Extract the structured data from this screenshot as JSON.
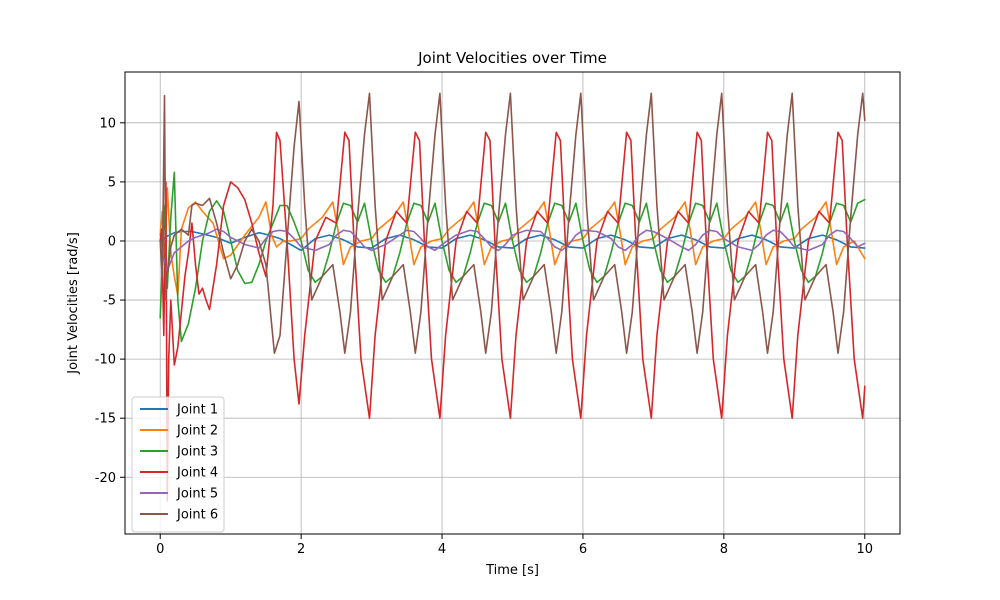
{
  "chart_data": {
    "type": "line",
    "title": "Joint Velocities over Time",
    "xlabel": "Time [s]",
    "ylabel": "Joint Velocities [rad/s]",
    "xlim": [
      -0.5,
      10.5
    ],
    "ylim": [
      -24.8,
      14.3
    ],
    "xticks": [
      0,
      2,
      4,
      6,
      8,
      10
    ],
    "yticks": [
      -20,
      -15,
      -10,
      -5,
      0,
      5,
      10
    ],
    "grid": true,
    "legend_position": "lower-left",
    "series": [
      {
        "name": "Joint 1",
        "color": "#1f77b4",
        "x": [
          0,
          0.05,
          0.1,
          0.2,
          0.3,
          0.45,
          0.6,
          0.8,
          1.0,
          1.2,
          1.4,
          1.55,
          1.7,
          1.85,
          2.0,
          2.2,
          2.4,
          2.6,
          2.8,
          3.0,
          3.2,
          3.4,
          3.6,
          3.8,
          4.0,
          4.2,
          4.4,
          4.6,
          4.8,
          5.0,
          5.2,
          5.4,
          5.6,
          5.8,
          6.0,
          6.2,
          6.4,
          6.6,
          6.8,
          7.0,
          7.2,
          7.4,
          7.6,
          7.8,
          8.0,
          8.2,
          8.4,
          8.6,
          8.8,
          9.0,
          9.2,
          9.4,
          9.6,
          9.8,
          10.0
        ],
        "y": [
          0.5,
          0.2,
          0.4,
          0.7,
          0.8,
          0.8,
          0.6,
          0.3,
          -0.2,
          0.3,
          0.7,
          0.5,
          0.2,
          -0.3,
          -0.8,
          0.2,
          0.5,
          0.1,
          -0.5,
          -0.6,
          0.2,
          0.5,
          0.1,
          -0.5,
          -0.6,
          0.2,
          0.5,
          0.1,
          -0.5,
          -0.6,
          0.2,
          0.5,
          0.1,
          -0.5,
          -0.6,
          0.2,
          0.5,
          0.1,
          -0.5,
          -0.6,
          0.2,
          0.5,
          0.1,
          -0.5,
          -0.6,
          0.2,
          0.5,
          0.1,
          -0.5,
          -0.6,
          0.2,
          0.5,
          0.1,
          -0.5,
          -0.6
        ]
      },
      {
        "name": "Joint 2",
        "color": "#ff7f0e",
        "x": [
          0,
          0.03,
          0.06,
          0.1,
          0.15,
          0.2,
          0.25,
          0.3,
          0.4,
          0.5,
          0.6,
          0.75,
          0.9,
          1.0,
          1.2,
          1.4,
          1.5,
          1.58,
          1.65,
          1.75,
          1.85,
          2.0,
          2.1,
          2.3,
          2.45,
          2.52,
          2.6,
          2.7,
          2.85,
          3.0,
          3.1,
          3.3,
          3.45,
          3.52,
          3.6,
          3.7,
          3.85,
          4.0,
          4.1,
          4.3,
          4.45,
          4.52,
          4.6,
          4.7,
          4.85,
          5.0,
          5.1,
          5.3,
          5.45,
          5.52,
          5.6,
          5.7,
          5.85,
          6.0,
          6.1,
          6.3,
          6.45,
          6.52,
          6.6,
          6.7,
          6.85,
          7.0,
          7.1,
          7.3,
          7.45,
          7.52,
          7.6,
          7.7,
          7.85,
          8.0,
          8.1,
          8.3,
          8.45,
          8.52,
          8.6,
          8.7,
          8.85,
          9.0,
          9.1,
          9.3,
          9.45,
          9.52,
          9.6,
          9.7,
          9.85,
          10.0
        ],
        "y": [
          0.5,
          2.5,
          -2.0,
          4.5,
          -1.0,
          -3.0,
          -4.6,
          1.0,
          2.8,
          3.3,
          2.5,
          1.5,
          -1.5,
          -1.2,
          0.5,
          2.0,
          3.3,
          0.5,
          -0.5,
          0.0,
          0.0,
          0.2,
          1.0,
          2.0,
          3.3,
          1.0,
          -2.0,
          -0.5,
          0.0,
          0.2,
          1.0,
          2.0,
          3.3,
          1.0,
          -2.0,
          -0.5,
          0.0,
          0.2,
          1.0,
          2.0,
          3.3,
          1.0,
          -2.0,
          -0.5,
          0.0,
          0.2,
          1.0,
          2.0,
          3.3,
          1.0,
          -2.0,
          -0.5,
          0.0,
          0.2,
          1.0,
          2.0,
          3.3,
          1.0,
          -2.0,
          -0.5,
          0.0,
          0.2,
          1.0,
          2.0,
          3.3,
          1.0,
          -2.0,
          -0.5,
          0.0,
          0.2,
          1.0,
          2.0,
          3.3,
          1.0,
          -2.0,
          -0.5,
          0.0,
          0.2,
          1.0,
          2.0,
          3.3,
          1.0,
          -2.0,
          -0.5,
          0.0,
          -1.5
        ]
      },
      {
        "name": "Joint 3",
        "color": "#2ca02c",
        "x": [
          0,
          0.03,
          0.06,
          0.1,
          0.15,
          0.2,
          0.25,
          0.3,
          0.4,
          0.5,
          0.6,
          0.7,
          0.8,
          0.9,
          1.0,
          1.1,
          1.2,
          1.3,
          1.4,
          1.5,
          1.6,
          1.7,
          1.8,
          1.9,
          2.0,
          2.1,
          2.2,
          2.3,
          2.4,
          2.5,
          2.6,
          2.7,
          2.8,
          2.9,
          3.0,
          3.1,
          3.2,
          3.3,
          3.4,
          3.5,
          3.6,
          3.7,
          3.8,
          3.9,
          4.0,
          4.1,
          4.2,
          4.3,
          4.4,
          4.5,
          4.6,
          4.7,
          4.8,
          4.9,
          5.0,
          5.1,
          5.2,
          5.3,
          5.4,
          5.5,
          5.6,
          5.7,
          5.8,
          5.9,
          6.0,
          6.1,
          6.2,
          6.3,
          6.4,
          6.5,
          6.6,
          6.7,
          6.8,
          6.9,
          7.0,
          7.1,
          7.2,
          7.3,
          7.4,
          7.5,
          7.6,
          7.7,
          7.8,
          7.9,
          8.0,
          8.1,
          8.2,
          8.3,
          8.4,
          8.5,
          8.6,
          8.7,
          8.8,
          8.9,
          9.0,
          9.1,
          9.2,
          9.3,
          9.4,
          9.5,
          9.6,
          9.7,
          9.8,
          9.9,
          10.0
        ],
        "y": [
          -6.5,
          -2.0,
          3.0,
          -4.0,
          2.0,
          5.8,
          -5.0,
          -8.5,
          -7.0,
          -4.0,
          0.0,
          2.5,
          3.4,
          2.5,
          0.0,
          -2.5,
          -3.6,
          -3.5,
          -2.0,
          0.0,
          1.5,
          3.0,
          3.0,
          1.6,
          0.0,
          -2.5,
          -3.5,
          -3.0,
          -1.0,
          1.5,
          3.2,
          3.0,
          1.6,
          3.2,
          0.0,
          -2.5,
          -3.5,
          -3.0,
          -1.0,
          1.5,
          3.2,
          3.0,
          1.6,
          3.2,
          0.0,
          -2.5,
          -3.5,
          -3.0,
          -1.0,
          1.5,
          3.2,
          3.0,
          1.6,
          3.2,
          0.0,
          -2.5,
          -3.5,
          -3.0,
          -1.0,
          1.5,
          3.2,
          3.0,
          1.6,
          3.2,
          0.0,
          -2.5,
          -3.5,
          -3.0,
          -1.0,
          1.5,
          3.2,
          3.0,
          1.6,
          3.2,
          0.0,
          -2.5,
          -3.5,
          -3.0,
          -1.0,
          1.5,
          3.2,
          3.0,
          1.6,
          3.2,
          0.0,
          -2.5,
          -3.5,
          -3.0,
          -1.0,
          1.5,
          3.2,
          3.0,
          1.6,
          3.2,
          0.0,
          -2.5,
          -3.5,
          -3.0,
          -1.0,
          1.5,
          3.2,
          3.0,
          1.6,
          3.2,
          3.5
        ]
      },
      {
        "name": "Joint 4",
        "color": "#d62728",
        "x": [
          0,
          0.02,
          0.05,
          0.08,
          0.1,
          0.12,
          0.15,
          0.2,
          0.25,
          0.3,
          0.35,
          0.4,
          0.45,
          0.5,
          0.55,
          0.6,
          0.65,
          0.7,
          0.8,
          0.9,
          1.0,
          1.1,
          1.2,
          1.3,
          1.4,
          1.5,
          1.6,
          1.65,
          1.7,
          1.8,
          1.9,
          1.97,
          2.05,
          2.2,
          2.35,
          2.5,
          2.62,
          2.68,
          2.75,
          2.85,
          2.97,
          3.05,
          3.2,
          3.35,
          3.5,
          3.62,
          3.68,
          3.75,
          3.85,
          3.97,
          4.05,
          4.2,
          4.35,
          4.5,
          4.62,
          4.68,
          4.75,
          4.85,
          4.97,
          5.05,
          5.2,
          5.35,
          5.5,
          5.62,
          5.68,
          5.75,
          5.85,
          5.97,
          6.05,
          6.2,
          6.35,
          6.5,
          6.62,
          6.68,
          6.75,
          6.85,
          6.97,
          7.05,
          7.2,
          7.35,
          7.5,
          7.62,
          7.68,
          7.75,
          7.85,
          7.97,
          8.05,
          8.2,
          8.35,
          8.5,
          8.62,
          8.68,
          8.75,
          8.85,
          8.97,
          9.05,
          9.2,
          9.35,
          9.5,
          9.62,
          9.68,
          9.75,
          9.85,
          9.97,
          10.0
        ],
        "y": [
          0.0,
          1.0,
          -8.0,
          5.0,
          -22.0,
          -10.0,
          -5.0,
          -10.5,
          -9.0,
          -6.0,
          -3.0,
          -1.0,
          1.5,
          -2.0,
          -4.5,
          -4.0,
          -5.0,
          -5.8,
          -2.0,
          3.0,
          5.0,
          4.5,
          3.5,
          1.5,
          -1.0,
          -3.0,
          3.0,
          9.2,
          8.5,
          0.0,
          -10.0,
          -13.8,
          -8.0,
          0.0,
          2.0,
          1.5,
          9.2,
          8.5,
          0.0,
          -10.0,
          -15.0,
          -8.0,
          0.0,
          2.5,
          1.5,
          9.2,
          8.5,
          0.0,
          -10.0,
          -15.0,
          -8.0,
          0.0,
          2.5,
          1.5,
          9.2,
          8.5,
          0.0,
          -10.0,
          -15.0,
          -8.0,
          0.0,
          2.5,
          1.5,
          9.2,
          8.5,
          0.0,
          -10.0,
          -15.0,
          -8.0,
          0.0,
          2.5,
          1.5,
          9.2,
          8.5,
          0.0,
          -10.0,
          -15.0,
          -8.0,
          0.0,
          2.5,
          1.5,
          9.2,
          8.5,
          0.0,
          -10.0,
          -15.0,
          -8.0,
          0.0,
          2.5,
          1.5,
          9.2,
          8.5,
          0.0,
          -10.0,
          -15.0,
          -8.0,
          0.0,
          2.5,
          1.5,
          9.2,
          8.5,
          0.0,
          -10.0,
          -15.0,
          -12.3
        ]
      },
      {
        "name": "Joint 5",
        "color": "#9467bd",
        "x": [
          0,
          0.05,
          0.1,
          0.2,
          0.3,
          0.4,
          0.5,
          0.6,
          0.7,
          0.8,
          0.9,
          1.0,
          1.2,
          1.4,
          1.5,
          1.6,
          1.7,
          1.8,
          1.9,
          2.0,
          2.2,
          2.4,
          2.5,
          2.6,
          2.7,
          2.8,
          2.9,
          3.0,
          3.2,
          3.4,
          3.5,
          3.6,
          3.7,
          3.8,
          3.9,
          4.0,
          4.2,
          4.4,
          4.5,
          4.6,
          4.7,
          4.8,
          4.9,
          5.0,
          5.2,
          5.4,
          5.5,
          5.6,
          5.7,
          5.8,
          5.9,
          6.0,
          6.2,
          6.4,
          6.5,
          6.6,
          6.7,
          6.8,
          6.9,
          7.0,
          7.2,
          7.4,
          7.5,
          7.6,
          7.7,
          7.8,
          7.9,
          8.0,
          8.2,
          8.4,
          8.5,
          8.6,
          8.7,
          8.8,
          8.9,
          9.0,
          9.2,
          9.4,
          9.5,
          9.6,
          9.7,
          9.8,
          9.9,
          10.0
        ],
        "y": [
          0.0,
          -1.5,
          -2.5,
          -1.0,
          -0.5,
          0.0,
          0.3,
          0.5,
          0.7,
          1.0,
          0.8,
          0.3,
          -0.3,
          -0.6,
          0.2,
          0.8,
          0.9,
          0.8,
          0.2,
          -0.5,
          -0.8,
          -0.3,
          0.5,
          0.9,
          0.8,
          0.2,
          -0.5,
          -0.8,
          -0.3,
          0.5,
          0.9,
          0.8,
          0.2,
          -0.5,
          -0.8,
          -0.3,
          0.5,
          0.9,
          0.8,
          0.2,
          -0.5,
          -0.8,
          -0.3,
          0.5,
          0.9,
          0.8,
          0.2,
          -0.5,
          -0.8,
          -0.3,
          0.5,
          0.9,
          0.8,
          0.2,
          -0.5,
          -0.8,
          -0.3,
          0.5,
          0.9,
          0.8,
          0.2,
          -0.5,
          -0.8,
          -0.3,
          0.5,
          0.9,
          0.8,
          0.2,
          -0.5,
          -0.8,
          -0.3,
          0.5,
          0.9,
          0.8,
          0.2,
          -0.5,
          -0.8,
          -0.3,
          0.5,
          0.9,
          0.8,
          0.2,
          -0.5,
          -0.2
        ]
      },
      {
        "name": "Joint 6",
        "color": "#8c564b",
        "x": [
          0,
          0.03,
          0.06,
          0.08,
          0.1,
          0.15,
          0.2,
          0.3,
          0.4,
          0.45,
          0.5,
          0.6,
          0.7,
          0.8,
          0.9,
          1.0,
          1.1,
          1.2,
          1.3,
          1.4,
          1.5,
          1.62,
          1.7,
          1.8,
          1.9,
          1.97,
          2.05,
          2.15,
          2.3,
          2.45,
          2.55,
          2.62,
          2.7,
          2.8,
          2.9,
          2.97,
          3.05,
          3.15,
          3.3,
          3.45,
          3.55,
          3.62,
          3.7,
          3.8,
          3.9,
          3.97,
          4.05,
          4.15,
          4.3,
          4.45,
          4.55,
          4.62,
          4.7,
          4.8,
          4.9,
          4.97,
          5.05,
          5.15,
          5.3,
          5.45,
          5.55,
          5.62,
          5.7,
          5.8,
          5.9,
          5.97,
          6.05,
          6.15,
          6.3,
          6.45,
          6.55,
          6.62,
          6.7,
          6.8,
          6.9,
          6.97,
          7.05,
          7.15,
          7.3,
          7.45,
          7.55,
          7.62,
          7.7,
          7.8,
          7.9,
          7.97,
          8.05,
          8.15,
          8.3,
          8.45,
          8.55,
          8.62,
          8.7,
          8.8,
          8.9,
          8.97,
          9.05,
          9.15,
          9.3,
          9.45,
          9.55,
          9.62,
          9.7,
          9.8,
          9.9,
          9.97,
          10.0
        ],
        "y": [
          0.0,
          -3.0,
          12.3,
          -5.0,
          -3.0,
          -0.5,
          0.5,
          1.0,
          0.5,
          3.0,
          3.2,
          3.0,
          3.6,
          1.5,
          -1.0,
          -3.2,
          -2.0,
          0.0,
          1.0,
          0.0,
          -2.0,
          -9.5,
          -8.0,
          0.0,
          8.0,
          11.8,
          3.0,
          -5.0,
          -3.0,
          -2.0,
          -6.0,
          -9.5,
          -6.0,
          2.0,
          9.0,
          12.5,
          3.0,
          -5.0,
          -3.0,
          -2.0,
          -6.0,
          -9.5,
          -6.0,
          2.0,
          9.0,
          12.5,
          3.0,
          -5.0,
          -3.0,
          -2.0,
          -6.0,
          -9.5,
          -6.0,
          2.0,
          9.0,
          12.5,
          3.0,
          -5.0,
          -3.0,
          -2.0,
          -6.0,
          -9.5,
          -6.0,
          2.0,
          9.0,
          12.5,
          3.0,
          -5.0,
          -3.0,
          -2.0,
          -6.0,
          -9.5,
          -6.0,
          2.0,
          9.0,
          12.5,
          3.0,
          -5.0,
          -3.0,
          -2.0,
          -6.0,
          -9.5,
          -6.0,
          2.0,
          9.0,
          12.5,
          3.0,
          -5.0,
          -3.0,
          -2.0,
          -6.0,
          -9.5,
          -6.0,
          2.0,
          9.0,
          12.5,
          3.0,
          -5.0,
          -3.0,
          -2.0,
          -6.0,
          -9.5,
          -6.0,
          2.0,
          9.0,
          12.5,
          10.2
        ]
      }
    ]
  }
}
